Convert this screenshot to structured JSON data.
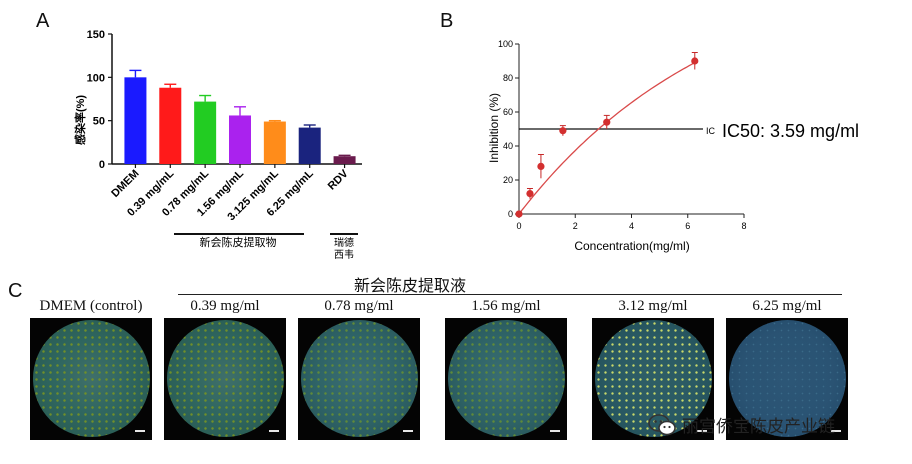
{
  "panels": {
    "a_label": "A",
    "b_label": "B",
    "c_label": "C"
  },
  "chart_data": [
    {
      "type": "bar",
      "panel": "A",
      "ylabel": "感染率(%)",
      "ylim": [
        0,
        150
      ],
      "yticks": [
        0,
        50,
        100,
        150
      ],
      "categories": [
        "DMEM",
        "0.39 mg/mL",
        "0.78 mg/mL",
        "1.56 mg/mL",
        "3.125 mg/mL",
        "6.25 mg/mL",
        "RDV"
      ],
      "values": [
        100,
        88,
        72,
        56,
        49,
        42,
        9
      ],
      "errors": [
        8,
        4,
        7,
        10,
        1,
        3,
        1
      ],
      "colors": [
        "#1a1aff",
        "#ff1a1a",
        "#22cc22",
        "#aa22ee",
        "#ff8c1a",
        "#1a237e",
        "#6a1b4d"
      ],
      "group_labels": {
        "extract": "新会陈皮提取物",
        "rdv_line1": "瑞德",
        "rdv_line2": "西韦"
      },
      "grid": false
    },
    {
      "type": "scatter",
      "panel": "B",
      "xlabel": "Concentration(mg/ml)",
      "ylabel": "Inhibition (%)",
      "xlim": [
        0,
        8
      ],
      "ylim": [
        0,
        100
      ],
      "xticks": [
        0,
        2,
        4,
        6,
        8
      ],
      "yticks": [
        0,
        20,
        40,
        60,
        80,
        100
      ],
      "points": [
        {
          "x": 0,
          "y": 0,
          "err": 1
        },
        {
          "x": 0.39,
          "y": 12,
          "err": 3
        },
        {
          "x": 0.78,
          "y": 28,
          "err": 7
        },
        {
          "x": 1.56,
          "y": 49,
          "err": 3
        },
        {
          "x": 3.12,
          "y": 54,
          "err": 4
        },
        {
          "x": 6.25,
          "y": 90,
          "err": 5
        }
      ],
      "fit_curve": "red",
      "ic50_line_y": 50,
      "ic50_marker": "IC",
      "ic50_text": "IC50: 3.59 mg/ml",
      "grid": false
    }
  ],
  "panel_c": {
    "group_title": "新会陈皮提取液",
    "wells": [
      {
        "label": "DMEM (control)",
        "tone": "dense"
      },
      {
        "label": "0.39 mg/ml",
        "tone": "dense"
      },
      {
        "label": "0.78 mg/ml",
        "tone": "medium"
      },
      {
        "label": "1.56 mg/ml",
        "tone": "medium"
      },
      {
        "label": "3.12 mg/ml",
        "tone": "sparse"
      },
      {
        "label": "6.25 mg/ml",
        "tone": "clear"
      }
    ]
  },
  "watermark": {
    "text": "丽宫侨宝陈皮产业链",
    "icon": "wechat-icon"
  }
}
